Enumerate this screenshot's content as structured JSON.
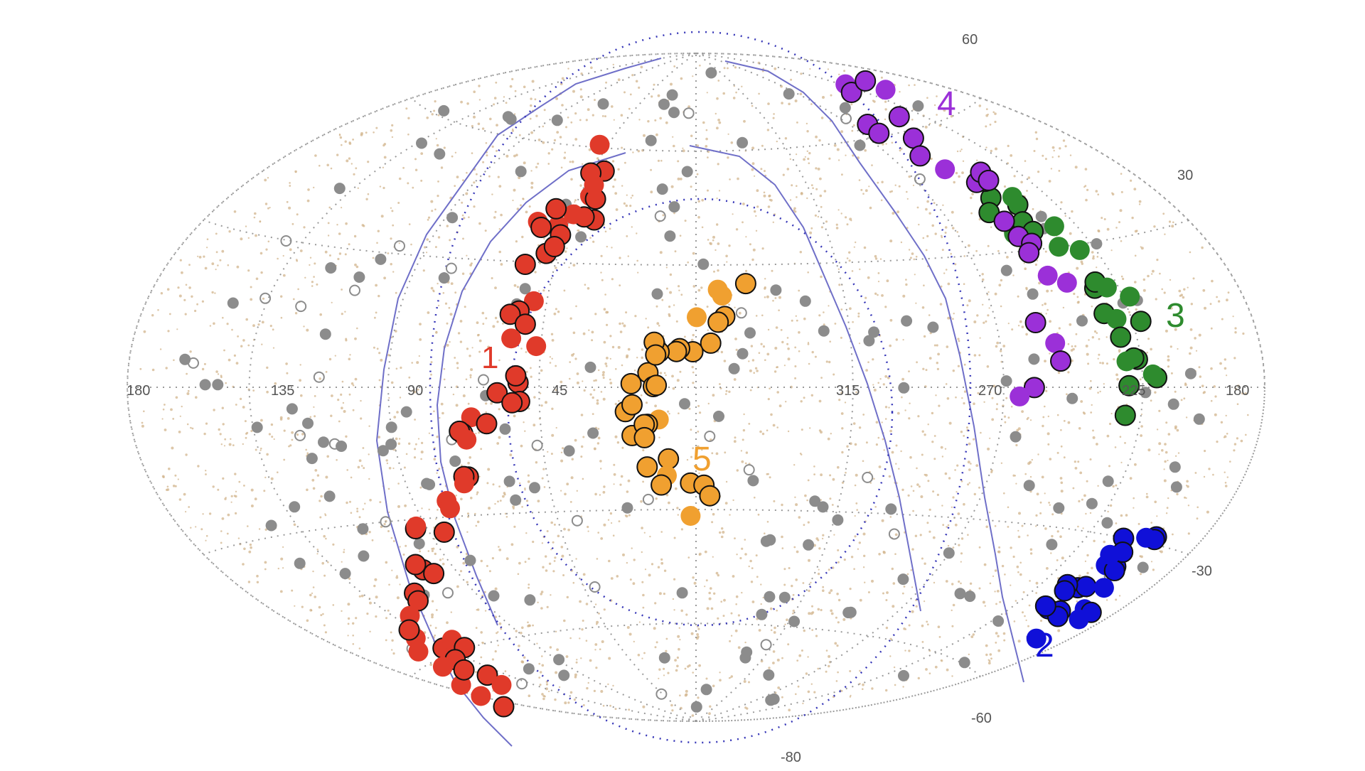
{
  "chart_data": {
    "type": "scatter",
    "projection": "aitoff-hammer all-sky",
    "title": "",
    "xlabel": "",
    "ylabel": "",
    "grid": true,
    "legend": "none",
    "longitude_tick_labels": [
      "180",
      "135",
      "90",
      "45",
      "315",
      "270",
      "225",
      "180"
    ],
    "latitude_tick_labels": [
      "60",
      "30",
      "-30",
      "-60",
      "-80"
    ],
    "background_color": "#d2b48c",
    "halo_color": "#8c8c8c",
    "boundary_color": "#6f6fc8",
    "groups": [
      {
        "label": "1",
        "color": "#e03a2a",
        "point_count": 62
      },
      {
        "label": "2",
        "color": "#1010d8",
        "point_count": 22
      },
      {
        "label": "3",
        "color": "#2e8b2e",
        "point_count": 26
      },
      {
        "label": "4",
        "color": "#9b30d8",
        "point_count": 24
      },
      {
        "label": "5",
        "color": "#f0a030",
        "point_count": 32
      }
    ]
  }
}
